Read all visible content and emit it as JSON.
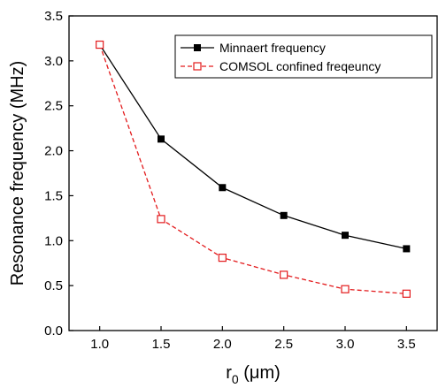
{
  "chart_data": {
    "type": "line",
    "x": [
      1.0,
      1.5,
      2.0,
      2.5,
      3.0,
      3.5
    ],
    "series": [
      {
        "name": "Minnaert frequency",
        "values": [
          3.18,
          2.13,
          1.59,
          1.28,
          1.06,
          0.91
        ],
        "color": "#000000",
        "line_style": "solid",
        "marker": "filled-square"
      },
      {
        "name": "COMSOL confined freqeuncy",
        "values": [
          3.18,
          1.24,
          0.81,
          0.62,
          0.46,
          0.41
        ],
        "color": "#e31a1c",
        "line_style": "dashed",
        "marker": "open-square"
      }
    ],
    "xlabel": {
      "main": "r",
      "sub": "0",
      "unit": " (μm)"
    },
    "ylabel": "Resonance frequency (MHz)",
    "xlim": [
      0.75,
      3.75
    ],
    "ylim": [
      0.0,
      3.5
    ],
    "xticks": [
      1.0,
      1.5,
      2.0,
      2.5,
      3.0,
      3.5
    ],
    "yticks": [
      0.0,
      0.5,
      1.0,
      1.5,
      2.0,
      2.5,
      3.0,
      3.5
    ],
    "xtick_labels": [
      "1.0",
      "1.5",
      "2.0",
      "2.5",
      "3.0",
      "3.5"
    ],
    "ytick_labels": [
      "0.0",
      "0.5",
      "1.0",
      "1.5",
      "2.0",
      "2.5",
      "3.0",
      "3.5"
    ],
    "grid": false,
    "legend_position": "top-right"
  }
}
